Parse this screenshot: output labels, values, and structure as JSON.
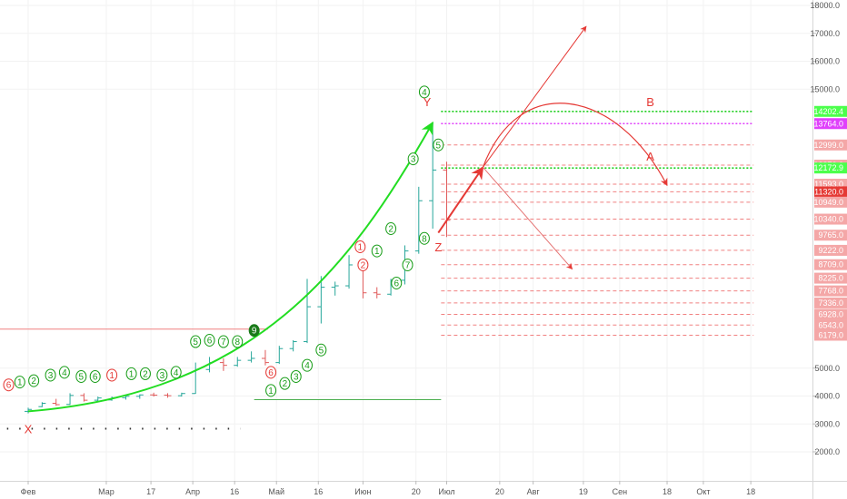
{
  "chart_data": {
    "type": "ohlc",
    "x_axis": {
      "ticks": [
        {
          "label": "Фев",
          "date": "2019-02-01"
        },
        {
          "label": "Мар",
          "date": "2019-03-01"
        },
        {
          "label": "17",
          "date": "2019-03-17"
        },
        {
          "label": "Апр",
          "date": "2019-04-01"
        },
        {
          "label": "16",
          "date": "2019-04-16"
        },
        {
          "label": "Май",
          "date": "2019-05-01"
        },
        {
          "label": "16",
          "date": "2019-05-16"
        },
        {
          "label": "Июн",
          "date": "2019-06-01"
        },
        {
          "label": "20",
          "date": "2019-06-20"
        },
        {
          "label": "Июл",
          "date": "2019-07-01"
        },
        {
          "label": "20",
          "date": "2019-07-20"
        },
        {
          "label": "Авг",
          "date": "2019-08-01"
        },
        {
          "label": "19",
          "date": "2019-08-19"
        },
        {
          "label": "Сен",
          "date": "2019-09-01"
        },
        {
          "label": "18",
          "date": "2019-09-18"
        },
        {
          "label": "Окт",
          "date": "2019-10-01"
        },
        {
          "label": "18",
          "date": "2019-10-18"
        }
      ]
    },
    "y_axis": {
      "ticks": [
        "18000.0",
        "17000.0",
        "16000.0",
        "15000.0",
        "5000.0",
        "4000.0",
        "3000.0",
        "2000.0"
      ],
      "range": [
        1000,
        18300
      ]
    },
    "price_labels": [
      {
        "text": "14202.4",
        "value": 14202.4,
        "bg": "#4cff4c",
        "fg": "#000000"
      },
      {
        "text": "13764.0",
        "value": 13764.0,
        "bg": "#e040fb",
        "fg": "#ffffff"
      },
      {
        "text": "12999.0",
        "value": 12999.0,
        "bg": "#f4a7a7",
        "fg": "#000000"
      },
      {
        "text": "12276.0",
        "value": 12276.0,
        "bg": "#f4a7a7",
        "fg": "#000000"
      },
      {
        "text": "12172.9",
        "value": 12172.9,
        "bg": "#4cff4c",
        "fg": "#000000"
      },
      {
        "text": "11593.0",
        "value": 11593.0,
        "bg": "#f4a7a7",
        "fg": "#000000"
      },
      {
        "text": "11320.0",
        "value": 11320.0,
        "bg": "#e53935",
        "fg": "#ffffff"
      },
      {
        "text": "10949.0",
        "value": 10949.0,
        "bg": "#f4a7a7",
        "fg": "#000000"
      },
      {
        "text": "10340.0",
        "value": 10340.0,
        "bg": "#f4a7a7",
        "fg": "#000000"
      },
      {
        "text": "9765.0",
        "value": 9765.0,
        "bg": "#f4a7a7",
        "fg": "#000000"
      },
      {
        "text": "9222.0",
        "value": 9222.0,
        "bg": "#f4a7a7",
        "fg": "#000000"
      },
      {
        "text": "8709.0",
        "value": 8709.0,
        "bg": "#f4a7a7",
        "fg": "#000000"
      },
      {
        "text": "8225.0",
        "value": 8225.0,
        "bg": "#f4a7a7",
        "fg": "#000000"
      },
      {
        "text": "7768.0",
        "value": 7768.0,
        "bg": "#f4a7a7",
        "fg": "#000000"
      },
      {
        "text": "7336.0",
        "value": 7336.0,
        "bg": "#f4a7a7",
        "fg": "#000000"
      },
      {
        "text": "6928.0",
        "value": 6928.0,
        "bg": "#f4a7a7",
        "fg": "#000000"
      },
      {
        "text": "6543.0",
        "value": 6543.0,
        "bg": "#f4a7a7",
        "fg": "#000000"
      },
      {
        "text": "6179.0",
        "value": 6179.0,
        "bg": "#f4a7a7",
        "fg": "#000000"
      }
    ],
    "ohlc_bars": [
      {
        "date": "2019-02-01",
        "open": 3450,
        "high": 3580,
        "low": 3380,
        "close": 3520
      },
      {
        "date": "2019-02-06",
        "open": 3620,
        "high": 3780,
        "low": 3600,
        "close": 3740
      },
      {
        "date": "2019-02-11",
        "open": 3740,
        "high": 3900,
        "low": 3650,
        "close": 3690
      },
      {
        "date": "2019-02-16",
        "open": 3700,
        "high": 4100,
        "low": 3680,
        "close": 4020
      },
      {
        "date": "2019-02-21",
        "open": 4020,
        "high": 4100,
        "low": 3800,
        "close": 3850
      },
      {
        "date": "2019-02-26",
        "open": 3850,
        "high": 3980,
        "low": 3820,
        "close": 3930
      },
      {
        "date": "2019-03-03",
        "open": 3860,
        "high": 3980,
        "low": 3830,
        "close": 3940
      },
      {
        "date": "2019-03-08",
        "open": 3940,
        "high": 4020,
        "low": 3870,
        "close": 3990
      },
      {
        "date": "2019-03-13",
        "open": 3990,
        "high": 4060,
        "low": 3900,
        "close": 4040
      },
      {
        "date": "2019-03-18",
        "open": 4040,
        "high": 4120,
        "low": 3980,
        "close": 4030
      },
      {
        "date": "2019-03-23",
        "open": 4030,
        "high": 4100,
        "low": 3940,
        "close": 4010
      },
      {
        "date": "2019-03-28",
        "open": 4010,
        "high": 4120,
        "low": 3980,
        "close": 4090
      },
      {
        "date": "2019-04-02",
        "open": 4090,
        "high": 5200,
        "low": 4080,
        "close": 4950
      },
      {
        "date": "2019-04-07",
        "open": 4950,
        "high": 5400,
        "low": 4850,
        "close": 5200
      },
      {
        "date": "2019-04-12",
        "open": 5200,
        "high": 5350,
        "low": 4900,
        "close": 5100
      },
      {
        "date": "2019-04-17",
        "open": 5100,
        "high": 5400,
        "low": 5050,
        "close": 5280
      },
      {
        "date": "2019-04-22",
        "open": 5280,
        "high": 5600,
        "low": 5200,
        "close": 5350
      },
      {
        "date": "2019-04-27",
        "open": 5350,
        "high": 5650,
        "low": 5100,
        "close": 5200
      },
      {
        "date": "2019-05-02",
        "open": 5200,
        "high": 5800,
        "low": 5150,
        "close": 5700
      },
      {
        "date": "2019-05-07",
        "open": 5700,
        "high": 6000,
        "low": 5600,
        "close": 5950
      },
      {
        "date": "2019-05-12",
        "open": 5950,
        "high": 8200,
        "low": 5900,
        "close": 7200
      },
      {
        "date": "2019-05-17",
        "open": 7200,
        "high": 8300,
        "low": 6600,
        "close": 7900
      },
      {
        "date": "2019-05-22",
        "open": 7900,
        "high": 8100,
        "low": 7600,
        "close": 7950
      },
      {
        "date": "2019-05-27",
        "open": 7950,
        "high": 9050,
        "low": 7850,
        "close": 8700
      },
      {
        "date": "2019-06-01",
        "open": 8700,
        "high": 8800,
        "low": 7500,
        "close": 7700
      },
      {
        "date": "2019-06-06",
        "open": 7700,
        "high": 7900,
        "low": 7500,
        "close": 7650
      },
      {
        "date": "2019-06-11",
        "open": 7650,
        "high": 8200,
        "low": 7600,
        "close": 8150
      },
      {
        "date": "2019-06-16",
        "open": 8150,
        "high": 9400,
        "low": 8000,
        "close": 9200
      },
      {
        "date": "2019-06-21",
        "open": 9200,
        "high": 11500,
        "low": 9100,
        "close": 11000
      },
      {
        "date": "2019-06-26",
        "open": 11000,
        "high": 13800,
        "low": 10000,
        "close": 12100
      },
      {
        "date": "2019-07-01",
        "open": 12100,
        "high": 12400,
        "low": 9700,
        "close": 10300
      }
    ],
    "td_counts": [
      {
        "label": "6",
        "date": "2019-01-25",
        "value": 4400,
        "color": "red"
      },
      {
        "label": "1",
        "date": "2019-01-29",
        "value": 4500,
        "color": "green"
      },
      {
        "label": "2",
        "date": "2019-02-03",
        "value": 4550,
        "color": "green"
      },
      {
        "label": "3",
        "date": "2019-02-09",
        "value": 4750,
        "color": "green"
      },
      {
        "label": "4",
        "date": "2019-02-14",
        "value": 4850,
        "color": "green"
      },
      {
        "label": "5",
        "date": "2019-02-20",
        "value": 4700,
        "color": "green"
      },
      {
        "label": "6",
        "date": "2019-02-25",
        "value": 4700,
        "color": "green"
      },
      {
        "label": "1",
        "date": "2019-03-03",
        "value": 4750,
        "color": "red"
      },
      {
        "label": "1",
        "date": "2019-03-10",
        "value": 4800,
        "color": "green"
      },
      {
        "label": "2",
        "date": "2019-03-15",
        "value": 4800,
        "color": "green"
      },
      {
        "label": "3",
        "date": "2019-03-21",
        "value": 4750,
        "color": "green"
      },
      {
        "label": "4",
        "date": "2019-03-26",
        "value": 4850,
        "color": "green"
      },
      {
        "label": "5",
        "date": "2019-04-02",
        "value": 5950,
        "color": "green"
      },
      {
        "label": "6",
        "date": "2019-04-07",
        "value": 6000,
        "color": "green"
      },
      {
        "label": "7",
        "date": "2019-04-12",
        "value": 5950,
        "color": "green"
      },
      {
        "label": "8",
        "date": "2019-04-17",
        "value": 5950,
        "color": "green"
      },
      {
        "label": "9",
        "date": "2019-04-23",
        "value": 6350,
        "color": "filled"
      },
      {
        "label": "6",
        "date": "2019-04-29",
        "value": 4850,
        "color": "red"
      },
      {
        "label": "1",
        "date": "2019-04-29",
        "value": 4200,
        "color": "green"
      },
      {
        "label": "2",
        "date": "2019-05-04",
        "value": 4450,
        "color": "green"
      },
      {
        "label": "3",
        "date": "2019-05-08",
        "value": 4700,
        "color": "green"
      },
      {
        "label": "4",
        "date": "2019-05-12",
        "value": 5100,
        "color": "green"
      },
      {
        "label": "5",
        "date": "2019-05-17",
        "value": 5650,
        "color": "green"
      },
      {
        "label": "1",
        "date": "2019-05-31",
        "value": 9350,
        "color": "red"
      },
      {
        "label": "2",
        "date": "2019-06-01",
        "value": 8700,
        "color": "red"
      },
      {
        "label": "1",
        "date": "2019-06-06",
        "value": 9200,
        "color": "green"
      },
      {
        "label": "2",
        "date": "2019-06-11",
        "value": 10000,
        "color": "green"
      },
      {
        "label": "6",
        "date": "2019-06-13",
        "value": 8050,
        "color": "green"
      },
      {
        "label": "7",
        "date": "2019-06-17",
        "value": 8700,
        "color": "green"
      },
      {
        "label": "3",
        "date": "2019-06-19",
        "value": 12500,
        "color": "green"
      },
      {
        "label": "8",
        "date": "2019-06-23",
        "value": 9650,
        "color": "green"
      },
      {
        "label": "4",
        "date": "2019-06-23",
        "value": 14900,
        "color": "green"
      },
      {
        "label": "5",
        "date": "2019-06-28",
        "value": 13000,
        "color": "green"
      }
    ],
    "wave_labels": [
      {
        "text": "X",
        "date": "2019-02-01",
        "value": 2830
      },
      {
        "text": "Y",
        "date": "2019-06-24",
        "value": 14550
      },
      {
        "text": "Z",
        "date": "2019-06-28",
        "value": 9350
      },
      {
        "text": "A",
        "date": "2019-09-12",
        "value": 12600
      },
      {
        "text": "B",
        "date": "2019-09-12",
        "value": 14550
      }
    ],
    "levels": [
      {
        "value": 14202.4,
        "color": "#1fcf1f",
        "style": "dotted",
        "from": "2019-06-29",
        "to": "2019-10-19"
      },
      {
        "value": 13764.0,
        "color": "#e040fb",
        "style": "dotted",
        "from": "2019-06-29",
        "to": "2019-10-19"
      },
      {
        "value": 12999.0,
        "color": "#f08080",
        "style": "dashed",
        "from": "2019-06-29",
        "to": "2019-10-19"
      },
      {
        "value": 12276.0,
        "color": "#f08080",
        "style": "dashed",
        "from": "2019-06-29",
        "to": "2019-10-19"
      },
      {
        "value": 12172.9,
        "color": "#1fcf1f",
        "style": "dotted",
        "from": "2019-06-29",
        "to": "2019-10-19"
      },
      {
        "value": 11593.0,
        "color": "#f08080",
        "style": "dashed",
        "from": "2019-06-29",
        "to": "2019-10-19"
      },
      {
        "value": 11320.0,
        "color": "#f08080",
        "style": "dashed",
        "from": "2019-06-29",
        "to": "2019-10-19"
      },
      {
        "value": 10949.0,
        "color": "#f08080",
        "style": "dashed",
        "from": "2019-06-29",
        "to": "2019-10-19"
      },
      {
        "value": 10340.0,
        "color": "#f08080",
        "style": "dashed",
        "from": "2019-06-29",
        "to": "2019-10-19"
      },
      {
        "value": 9765.0,
        "color": "#f08080",
        "style": "dashed",
        "from": "2019-06-29",
        "to": "2019-10-19"
      },
      {
        "value": 9222.0,
        "color": "#f08080",
        "style": "dashed",
        "from": "2019-06-29",
        "to": "2019-10-19"
      },
      {
        "value": 8709.0,
        "color": "#f08080",
        "style": "dashed",
        "from": "2019-06-29",
        "to": "2019-10-19"
      },
      {
        "value": 8225.0,
        "color": "#f08080",
        "style": "dashed",
        "from": "2019-06-29",
        "to": "2019-10-19"
      },
      {
        "value": 7768.0,
        "color": "#f08080",
        "style": "dashed",
        "from": "2019-06-29",
        "to": "2019-10-19"
      },
      {
        "value": 7336.0,
        "color": "#f08080",
        "style": "dashed",
        "from": "2019-06-29",
        "to": "2019-10-19"
      },
      {
        "value": 6928.0,
        "color": "#f08080",
        "style": "dashed",
        "from": "2019-06-29",
        "to": "2019-10-19"
      },
      {
        "value": 6543.0,
        "color": "#f08080",
        "style": "dashed",
        "from": "2019-06-29",
        "to": "2019-10-19"
      },
      {
        "value": 6179.0,
        "color": "#f08080",
        "style": "dashed",
        "from": "2019-06-29",
        "to": "2019-10-19"
      },
      {
        "value": 6400.0,
        "color": "#f08080",
        "style": "solid",
        "from": "2019-01-20",
        "to": "2019-04-28"
      },
      {
        "value": 3870.0,
        "color": "#4caf50",
        "style": "solid",
        "from": "2019-04-23",
        "to": "2019-06-29"
      },
      {
        "value": 2830.0,
        "color": "#333333",
        "style": "dots",
        "from": "2019-01-20",
        "to": "2019-04-18"
      }
    ],
    "drawings": {
      "green_arc": [
        {
          "date": "2019-02-01",
          "value": 3450
        },
        {
          "date": "2019-06-26",
          "value": 13800
        }
      ],
      "arrow_up": [
        {
          "date": "2019-06-28",
          "value": 9850
        },
        {
          "date": "2019-07-14",
          "value": 12200
        }
      ],
      "ray_top": [
        {
          "date": "2019-07-14",
          "value": 12200
        },
        {
          "date": "2019-08-20",
          "value": 17250
        }
      ],
      "ray_bottom": [
        {
          "date": "2019-07-14",
          "value": 12200
        },
        {
          "date": "2019-08-15",
          "value": 8550
        }
      ],
      "curve": [
        {
          "date": "2019-07-14",
          "value": 12200
        },
        {
          "date": "2019-08-07",
          "value": 14200
        },
        {
          "date": "2019-09-18",
          "value": 11550
        }
      ]
    }
  }
}
